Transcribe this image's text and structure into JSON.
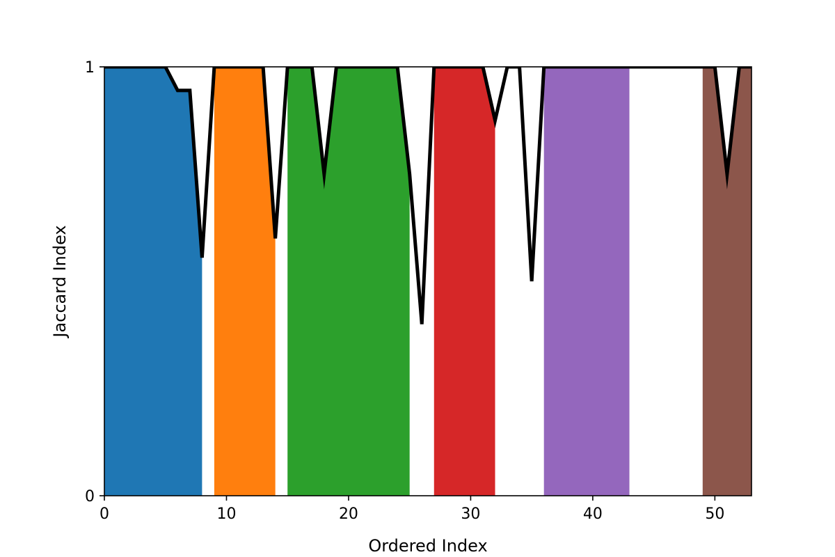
{
  "chart_data": {
    "type": "area",
    "title": "",
    "xlabel": "Ordered Index",
    "ylabel": "Jaccard Index",
    "xlim": [
      0,
      53
    ],
    "ylim": [
      0,
      1
    ],
    "x_ticks": [
      0,
      10,
      20,
      30,
      40,
      50
    ],
    "y_ticks": [
      0,
      1
    ],
    "grid": false,
    "line_color": "#000000",
    "x": [
      0,
      1,
      2,
      3,
      4,
      5,
      6,
      7,
      8,
      9,
      10,
      11,
      12,
      13,
      14,
      15,
      16,
      17,
      18,
      19,
      20,
      21,
      22,
      23,
      24,
      25,
      26,
      27,
      28,
      29,
      30,
      31,
      32,
      33,
      34,
      35,
      36,
      37,
      38,
      39,
      40,
      41,
      42,
      43,
      44,
      45,
      46,
      47,
      48,
      49,
      50,
      51,
      52,
      53
    ],
    "y": [
      1,
      1,
      1,
      1,
      1,
      1,
      0.945,
      0.945,
      0.555,
      1,
      1,
      1,
      1,
      1,
      0.6,
      1,
      1,
      1,
      0.75,
      1,
      1,
      1,
      1,
      1,
      1,
      0.75,
      0.4,
      1,
      1,
      1,
      1,
      1,
      0.875,
      1,
      1,
      0.5,
      1,
      1,
      1,
      1,
      1,
      1,
      1,
      1,
      1,
      1,
      1,
      1,
      1,
      1,
      1,
      0.75,
      1,
      1
    ],
    "clusters": [
      {
        "x_start": 0,
        "x_end": 8,
        "color": "#1f77b4"
      },
      {
        "x_start": 9,
        "x_end": 14,
        "color": "#ff7f0e"
      },
      {
        "x_start": 15,
        "x_end": 25,
        "color": "#2ca02c"
      },
      {
        "x_start": 27,
        "x_end": 32,
        "color": "#d62728"
      },
      {
        "x_start": 36,
        "x_end": 43,
        "color": "#9467bd"
      },
      {
        "x_start": 49,
        "x_end": 53,
        "color": "#8c564b"
      }
    ]
  }
}
